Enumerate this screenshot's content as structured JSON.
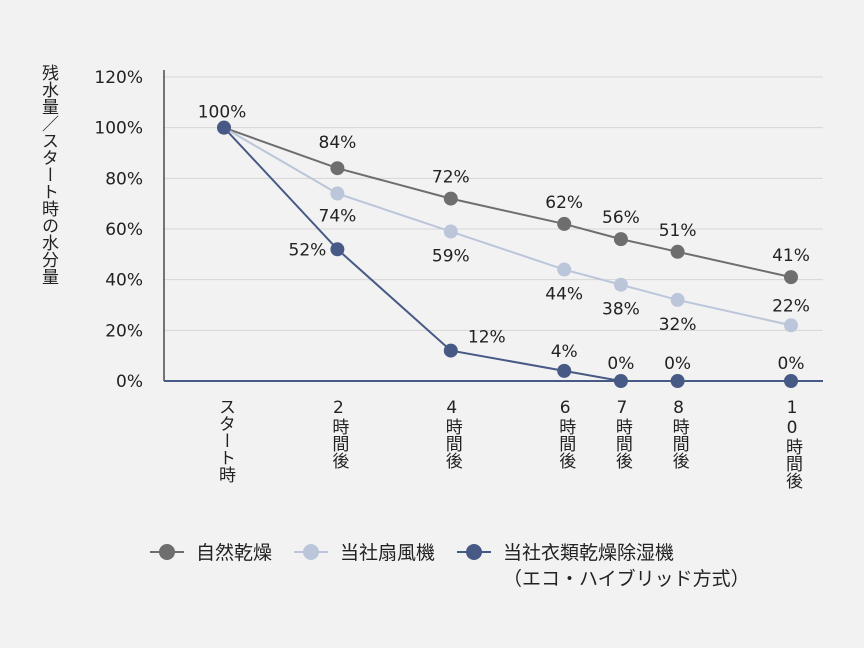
{
  "chart_data": {
    "type": "line",
    "ylabel": "残水量／スタート時の水分量",
    "xlabel": "",
    "x_hours": [
      0,
      2,
      4,
      6,
      7,
      8,
      10
    ],
    "categories": [
      "スタート時",
      "2時間後",
      "4時間後",
      "6時間後",
      "7時間後",
      "8時間後",
      "10時間後"
    ],
    "ylim": [
      0,
      120
    ],
    "yticks": [
      "0%",
      "20%",
      "40%",
      "60%",
      "80%",
      "100%",
      "120%"
    ],
    "grid": true,
    "legend_position": "bottom",
    "series": [
      {
        "name": "自然乾燥",
        "color": "#6e6e6e",
        "values": [
          100,
          84,
          72,
          62,
          56,
          51,
          41
        ],
        "labels": [
          "",
          "84%",
          "72%",
          "62%",
          "56%",
          "51%",
          "41%"
        ]
      },
      {
        "name": "当社扇風機",
        "color": "#bcc6da",
        "values": [
          100,
          74,
          59,
          44,
          38,
          32,
          22
        ],
        "labels": [
          "",
          "74%",
          "59%",
          "44%",
          "38%",
          "32%",
          "22%"
        ]
      },
      {
        "name": "当社衣類乾燥除湿機",
        "name_line2": "（エコ・ハイブリッド方式）",
        "color": "#475a85",
        "values": [
          100,
          52,
          12,
          4,
          0,
          0,
          0
        ],
        "labels": [
          "100%",
          "52%",
          "12%",
          "4%",
          "0%",
          "0%",
          "0%"
        ]
      }
    ]
  }
}
